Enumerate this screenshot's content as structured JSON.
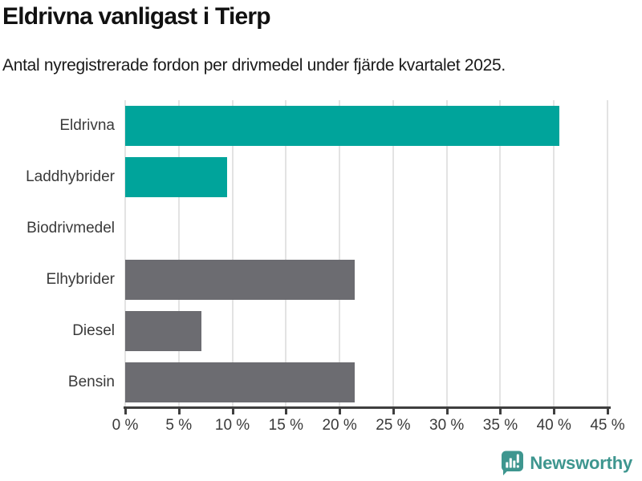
{
  "header": {
    "title": "Eldrivna vanligast i Tierp",
    "subtitle": "Antal nyregistrerade fordon per drivmedel under fjärde kvartalet 2025."
  },
  "chart_data": {
    "type": "bar",
    "orientation": "horizontal",
    "title": "Eldrivna vanligast i Tierp",
    "subtitle": "Antal nyregistrerade fordon per drivmedel under fjärde kvartalet 2025.",
    "categories": [
      "Eldrivna",
      "Laddhybrider",
      "Biodrivmedel",
      "Elhybrider",
      "Diesel",
      "Bensin"
    ],
    "values": [
      40.5,
      9.5,
      0,
      21.4,
      7.1,
      21.4
    ],
    "unit": "%",
    "bar_colors": [
      "#00A49B",
      "#00A49B",
      "#00A49B",
      "#6C6C71",
      "#6C6C71",
      "#6C6C71"
    ],
    "xlim": [
      0,
      45
    ],
    "x_ticks": [
      0,
      5,
      10,
      15,
      20,
      25,
      30,
      35,
      40,
      45
    ],
    "x_tick_labels": [
      "0 %",
      "5 %",
      "10 %",
      "15 %",
      "20 %",
      "25 %",
      "30 %",
      "35 %",
      "40 %",
      "45 %"
    ],
    "grid": true,
    "legend": false,
    "xlabel": "",
    "ylabel": ""
  },
  "footer": {
    "brand": "Newsworthy"
  },
  "colors": {
    "bar_teal": "#00A49B",
    "bar_gray": "#6C6C71",
    "gridline": "#E3E3E3",
    "axis_line": "#3F3F3F",
    "title_text": "#111111",
    "label_text": "#3A3A3A",
    "brand_teal": "#3E968F"
  }
}
